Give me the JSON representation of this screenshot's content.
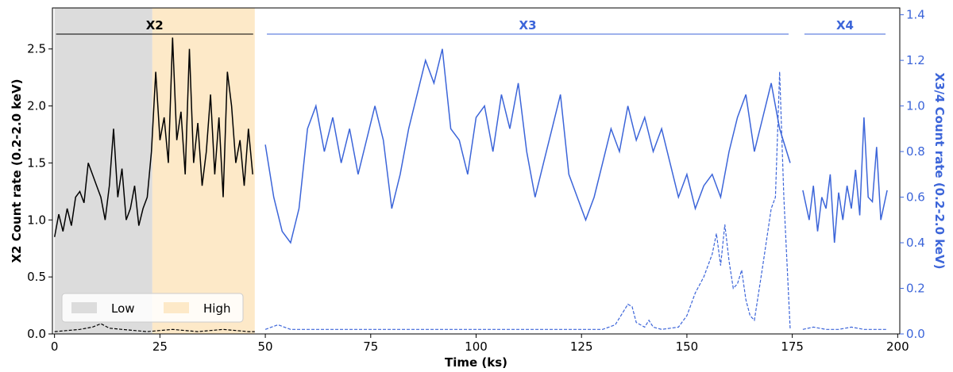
{
  "chart_data": {
    "type": "line",
    "xlabel": "Time (ks)",
    "ylabel_left": "X2 Count rate (0.2-2.0 keV)",
    "ylabel_right": "X3/4 Count rate (0.2-2.0 keV)",
    "xlim": [
      -0.5,
      200.5
    ],
    "ylim_left": [
      0,
      2.86
    ],
    "ylim_right": [
      0,
      1.43
    ],
    "x_ticks": [
      0,
      25,
      50,
      75,
      100,
      125,
      150,
      175,
      200
    ],
    "y_ticks_left": [
      0.0,
      0.5,
      1.0,
      1.5,
      2.0,
      2.5
    ],
    "y_ticks_right": [
      0.0,
      0.2,
      0.4,
      0.6,
      0.8,
      1.0,
      1.2,
      1.4
    ],
    "colors": {
      "x2": "#000000",
      "x34": "#3c65d9",
      "low": "#dcdcdc",
      "high": "#fde9c8"
    },
    "segments": [
      {
        "label": "X2",
        "x_start": 0,
        "x_end": 47.5,
        "color": "#000000"
      },
      {
        "label": "X3",
        "x_start": 50,
        "x_end": 174.5,
        "color": "#3c65d9"
      },
      {
        "label": "X4",
        "x_start": 177.5,
        "x_end": 197.5,
        "color": "#3c65d9"
      }
    ],
    "shaded_regions": [
      {
        "label": "Low",
        "x_start": 0,
        "x_end": 23.2,
        "color": "#dcdcdc"
      },
      {
        "label": "High",
        "x_start": 23.2,
        "x_end": 47.5,
        "color": "#fde9c8"
      }
    ],
    "legend": {
      "placement": "lower-left",
      "entries": [
        "Low",
        "High"
      ]
    },
    "series": [
      {
        "axis": "left",
        "style": "solid",
        "color": "#000000",
        "x": [
          0,
          1,
          2,
          3,
          4,
          5,
          6,
          7,
          8,
          9,
          10,
          11,
          12,
          13,
          14,
          15,
          16,
          17,
          18,
          19,
          20,
          21,
          22,
          23,
          24,
          25,
          26,
          27,
          28,
          29,
          30,
          31,
          32,
          33,
          34,
          35,
          36,
          37,
          38,
          39,
          40,
          41,
          42,
          43,
          44,
          45,
          46,
          47
        ],
        "y": [
          0.85,
          1.05,
          0.9,
          1.1,
          0.95,
          1.2,
          1.25,
          1.15,
          1.5,
          1.4,
          1.3,
          1.2,
          1.0,
          1.3,
          1.8,
          1.2,
          1.45,
          1.0,
          1.1,
          1.3,
          0.95,
          1.1,
          1.2,
          1.6,
          2.3,
          1.7,
          1.9,
          1.5,
          2.6,
          1.7,
          1.95,
          1.4,
          2.5,
          1.5,
          1.85,
          1.3,
          1.6,
          2.1,
          1.4,
          1.9,
          1.2,
          2.3,
          2.0,
          1.5,
          1.7,
          1.3,
          1.8,
          1.4
        ]
      },
      {
        "axis": "left",
        "style": "dashed",
        "color": "#000000",
        "x": [
          0,
          3,
          6,
          9,
          11,
          13,
          16,
          19,
          22,
          25,
          28,
          31,
          34,
          37,
          40,
          43,
          46,
          47.5
        ],
        "y": [
          0.02,
          0.03,
          0.04,
          0.06,
          0.09,
          0.05,
          0.04,
          0.03,
          0.02,
          0.03,
          0.04,
          0.03,
          0.02,
          0.03,
          0.04,
          0.03,
          0.02,
          0.02
        ]
      },
      {
        "axis": "right",
        "style": "solid",
        "color": "#3c65d9",
        "x": [
          50,
          52,
          54,
          56,
          58,
          60,
          62,
          64,
          66,
          68,
          70,
          72,
          74,
          76,
          78,
          80,
          82,
          84,
          86,
          88,
          90,
          92,
          94,
          96,
          98,
          100,
          102,
          104,
          106,
          108,
          110,
          112,
          114,
          116,
          118,
          120,
          122,
          124,
          126,
          128,
          130,
          132,
          134,
          136,
          138,
          140,
          142,
          144,
          146,
          148,
          150,
          152,
          154,
          156,
          158,
          160,
          162,
          164,
          166,
          168,
          170,
          172,
          174.5
        ],
        "y": [
          0.83,
          0.6,
          0.45,
          0.4,
          0.55,
          0.9,
          1.0,
          0.8,
          0.95,
          0.75,
          0.9,
          0.7,
          0.85,
          1.0,
          0.85,
          0.55,
          0.7,
          0.9,
          1.05,
          1.2,
          1.1,
          1.25,
          0.9,
          0.85,
          0.7,
          0.95,
          1.0,
          0.8,
          1.05,
          0.9,
          1.1,
          0.8,
          0.6,
          0.75,
          0.9,
          1.05,
          0.7,
          0.6,
          0.5,
          0.6,
          0.75,
          0.9,
          0.8,
          1.0,
          0.85,
          0.95,
          0.8,
          0.9,
          0.75,
          0.6,
          0.7,
          0.55,
          0.65,
          0.7,
          0.6,
          0.8,
          0.95,
          1.05,
          0.8,
          0.95,
          1.1,
          0.9,
          0.75
        ]
      },
      {
        "axis": "right",
        "style": "dashed",
        "color": "#3c65d9",
        "x": [
          50,
          53,
          56,
          60,
          65,
          70,
          75,
          80,
          85,
          90,
          95,
          100,
          105,
          110,
          115,
          120,
          125,
          130,
          133,
          135,
          136,
          137,
          138,
          140,
          141,
          142,
          144,
          148,
          150,
          152,
          154,
          156,
          157,
          158,
          159,
          160,
          161,
          162,
          163,
          164,
          165,
          166,
          168,
          170,
          171,
          172,
          173,
          174.5
        ],
        "y": [
          0.02,
          0.04,
          0.02,
          0.02,
          0.02,
          0.02,
          0.02,
          0.02,
          0.02,
          0.02,
          0.02,
          0.02,
          0.02,
          0.02,
          0.02,
          0.02,
          0.02,
          0.02,
          0.04,
          0.1,
          0.13,
          0.12,
          0.05,
          0.03,
          0.06,
          0.03,
          0.02,
          0.03,
          0.08,
          0.18,
          0.25,
          0.35,
          0.44,
          0.3,
          0.48,
          0.32,
          0.2,
          0.22,
          0.28,
          0.15,
          0.08,
          0.06,
          0.3,
          0.55,
          0.6,
          1.15,
          0.6,
          0.02
        ]
      },
      {
        "axis": "right",
        "style": "solid",
        "color": "#3c65d9",
        "x": [
          177.5,
          179,
          180,
          181,
          182,
          183,
          184,
          185,
          186,
          187,
          188,
          189,
          190,
          191,
          192,
          193,
          194,
          195,
          196,
          197.5
        ],
        "y": [
          0.63,
          0.5,
          0.65,
          0.45,
          0.6,
          0.55,
          0.7,
          0.4,
          0.62,
          0.5,
          0.65,
          0.55,
          0.72,
          0.52,
          0.95,
          0.6,
          0.58,
          0.82,
          0.5,
          0.63
        ]
      },
      {
        "axis": "right",
        "style": "dashed",
        "color": "#3c65d9",
        "x": [
          177.5,
          180,
          183,
          186,
          189,
          192,
          195,
          197.5
        ],
        "y": [
          0.02,
          0.03,
          0.02,
          0.02,
          0.03,
          0.02,
          0.02,
          0.02
        ]
      }
    ]
  }
}
